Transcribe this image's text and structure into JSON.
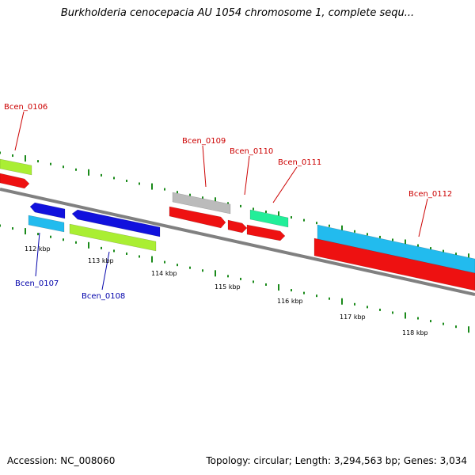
{
  "title": "Burkholderia cenocepacia AU 1054 chromosome 1, complete sequ...",
  "footer": {
    "accession": "Accession: NC_008060",
    "summary": "Topology: circular; Length: 3,294,563 bp; Genes: 3,034"
  },
  "colors": {
    "backbone": "#808080",
    "tick": "#1a8a1a",
    "label_top": "#cc0000",
    "label_bottom": "#0000aa"
  },
  "scale_labels": [
    "112 kbp",
    "113 kbp",
    "114 kbp",
    "115 kbp",
    "116 kbp",
    "117 kbp",
    "118 kbp"
  ],
  "gene_labels": [
    {
      "name": "Bcen_0106",
      "side": "top"
    },
    {
      "name": "Bcen_0107",
      "side": "bottom"
    },
    {
      "name": "Bcen_0108",
      "side": "bottom"
    },
    {
      "name": "Bcen_0109",
      "side": "top"
    },
    {
      "name": "Bcen_0110",
      "side": "top"
    },
    {
      "name": "Bcen_0111",
      "side": "top"
    },
    {
      "name": "Bcen_0112",
      "side": "top"
    }
  ],
  "features": [
    {
      "name": "lime-feature-upper-left",
      "color": "#aaee33"
    },
    {
      "name": "red-feature-upper-left",
      "color": "#ee1111"
    },
    {
      "name": "blue-feature-bcen-0107",
      "color": "#1111dd"
    },
    {
      "name": "cyan-feature-bcen-0107",
      "color": "#22bbee"
    },
    {
      "name": "blue-feature-bcen-0108",
      "color": "#1111dd"
    },
    {
      "name": "lime-feature-bcen-0108",
      "color": "#aaee33"
    },
    {
      "name": "grey-feature-bcen-0109",
      "color": "#bbbbbb"
    },
    {
      "name": "red-feature-bcen-0109",
      "color": "#ee1111"
    },
    {
      "name": "red-feature-bcen-0110",
      "color": "#ee1111"
    },
    {
      "name": "green-feature-bcen-0111",
      "color": "#22ee99"
    },
    {
      "name": "red-feature-bcen-0111",
      "color": "#ee1111"
    },
    {
      "name": "cyan-feature-bcen-0112",
      "color": "#22bbee"
    },
    {
      "name": "red-feature-bcen-0112",
      "color": "#ee1111"
    }
  ]
}
